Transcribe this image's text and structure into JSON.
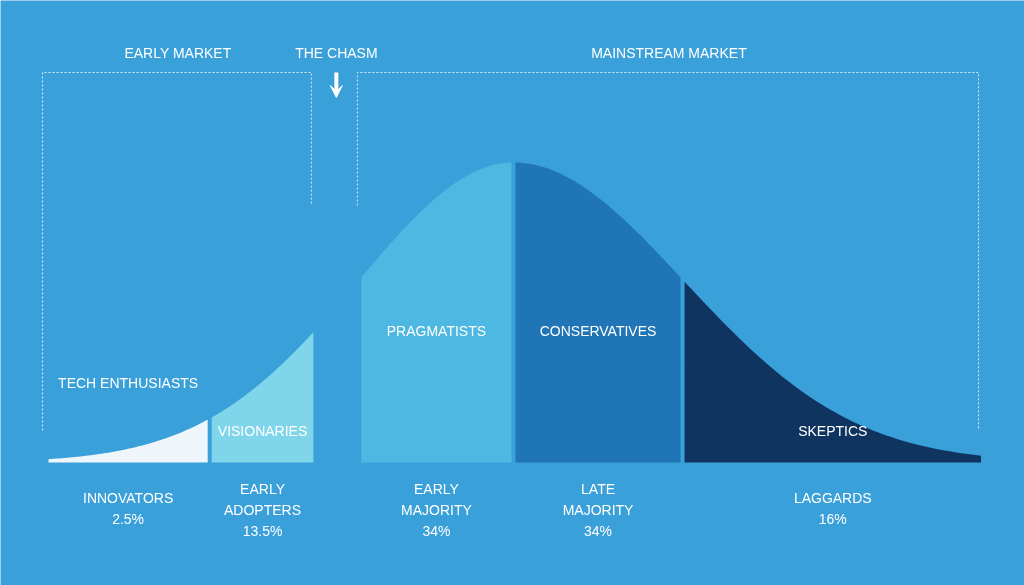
{
  "chart_data": {
    "type": "other",
    "categories": [
      "INNOVATORS",
      "EARLY ADOPTERS",
      "EARLY MAJORITY",
      "LATE MAJORITY",
      "LAGGARDS"
    ],
    "values": [
      2.5,
      13.5,
      34,
      34,
      16
    ],
    "value_labels": [
      "2.5%",
      "13.5%",
      "34%",
      "34%",
      "16%"
    ],
    "colors": [
      "#eef6fb",
      "#7fd6ea",
      "#4db8e2",
      "#1f75b5",
      "#0f3460"
    ],
    "annotations": [
      "EARLY MARKET",
      "THE CHASM",
      "MAINSTREAM MARKET",
      {
        "text": "TECH ENTHUSIASTS",
        "x": "INNOVATORS"
      },
      {
        "text": "VISIONARIES",
        "x": "EARLY ADOPTERS"
      },
      {
        "text": "PRAGMATISTS",
        "x": "EARLY MAJORITY"
      },
      {
        "text": "CONSERVATIVES",
        "x": "LATE MAJORITY"
      },
      {
        "text": "SKEPTICS",
        "x": "LAGGARDS"
      }
    ]
  }
}
